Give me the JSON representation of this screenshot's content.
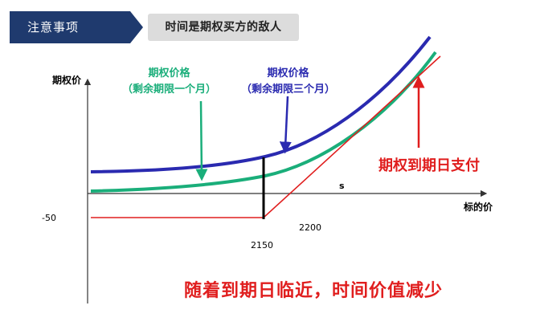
{
  "header": {
    "title": "注意事项",
    "accent_color": "#1f3a6e"
  },
  "subtitle": "时间是期权买方的敌人",
  "diagram": {
    "y_axis_label": "期权价",
    "x_axis_label": "标的价",
    "s_label": "s",
    "minus_label": "-50",
    "strike_label": "2150",
    "breakeven_label": "2200",
    "green_curve": {
      "line1": "期权价格",
      "line2": "（剩余期限一个月）",
      "color": "#1aae7a"
    },
    "blue_curve": {
      "line1": "期权价格",
      "line2": "（剩余期限三个月）",
      "color": "#2a2ab0"
    },
    "payoff": {
      "label": "期权到期日支付",
      "color": "#e01e1e"
    },
    "conclusion": "随着到期日临近，时间价值减少"
  }
}
